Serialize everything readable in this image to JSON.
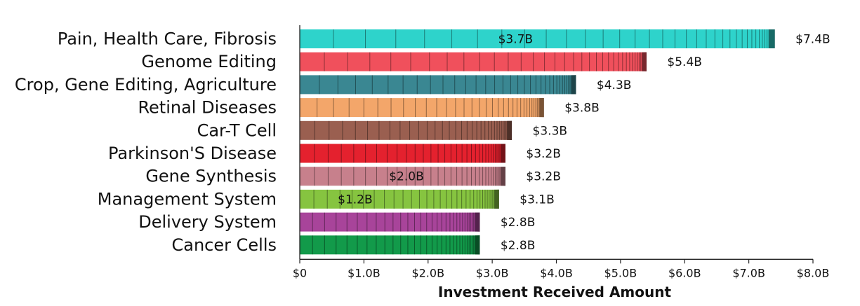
{
  "chart_data": {
    "type": "bar",
    "orientation": "horizontal",
    "stacked": true,
    "title": "",
    "xlabel": "Investment Received Amount",
    "ylabel": "",
    "xlim": [
      0,
      8
    ],
    "x_unit": "billion USD",
    "x_tick_labels": [
      "$0",
      "$1.0B",
      "$2.0B",
      "$3.0B",
      "$4.0B",
      "$5.0B",
      "$6.0B",
      "$7.0B",
      "$8.0B"
    ],
    "grid": false,
    "legend": "none",
    "categories": [
      {
        "label": "Pain, Health Care, Fibrosis",
        "total": 7.4,
        "total_label": "$7.4B",
        "color": "#2ed3cb",
        "inbar_label": "$3.7B",
        "inbar_value": 3.7
      },
      {
        "label": "Genome Editing",
        "total": 5.4,
        "total_label": "$5.4B",
        "color": "#f0505c",
        "inbar_label": "",
        "inbar_value": 0
      },
      {
        "label": "Crop, Gene Editing, Agriculture",
        "total": 4.3,
        "total_label": "$4.3B",
        "color": "#3a8792",
        "inbar_label": "",
        "inbar_value": 0
      },
      {
        "label": "Retinal Diseases",
        "total": 3.8,
        "total_label": "$3.8B",
        "color": "#f3a66a",
        "inbar_label": "",
        "inbar_value": 0
      },
      {
        "label": "Car-T Cell",
        "total": 3.3,
        "total_label": "$3.3B",
        "color": "#9a5f50",
        "inbar_label": "",
        "inbar_value": 0
      },
      {
        "label": "Parkinson'S Disease",
        "total": 3.2,
        "total_label": "$3.2B",
        "color": "#e4212e",
        "inbar_label": "",
        "inbar_value": 0
      },
      {
        "label": "Gene Synthesis",
        "total": 3.2,
        "total_label": "$3.2B",
        "color": "#c7808c",
        "inbar_label": "$2.0B",
        "inbar_value": 2.0
      },
      {
        "label": "Management System",
        "total": 3.1,
        "total_label": "$3.1B",
        "color": "#86c440",
        "inbar_label": "$1.2B",
        "inbar_value": 1.2
      },
      {
        "label": "Delivery System",
        "total": 2.8,
        "total_label": "$2.8B",
        "color": "#a8449a",
        "inbar_label": "",
        "inbar_value": 0
      },
      {
        "label": "Cancer Cells",
        "total": 2.8,
        "total_label": "$2.8B",
        "color": "#129a4a",
        "inbar_label": "",
        "inbar_value": 0
      }
    ]
  }
}
